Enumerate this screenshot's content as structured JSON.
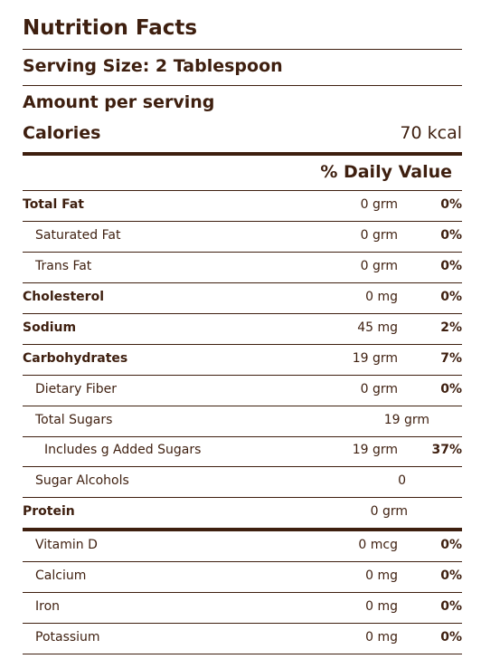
{
  "title": "Nutrition Facts",
  "serving_size": "Serving Size: 2 Tablespoon",
  "amount_per_serving": "Amount per serving",
  "calories_label": "Calories",
  "calories_value": "70 kcal",
  "daily_value_header": "% Daily Value",
  "nutrients": [
    {
      "name": "Total Fat",
      "amount": "0 grm",
      "dv": "0%"
    },
    {
      "name": "Saturated Fat",
      "amount": "0 grm",
      "dv": "0%"
    },
    {
      "name": "Trans Fat",
      "amount": "0 grm",
      "dv": "0%"
    },
    {
      "name": "Cholesterol",
      "amount": "0 mg",
      "dv": "0%"
    },
    {
      "name": "Sodium",
      "amount": "45 mg",
      "dv": "2%"
    },
    {
      "name": "Carbohydrates",
      "amount": "19 grm",
      "dv": "7%"
    },
    {
      "name": "Dietary Fiber",
      "amount": "0 grm",
      "dv": "0%"
    },
    {
      "name": "Total Sugars",
      "amount": "19 grm",
      "dv": ""
    },
    {
      "name": "Includes g Added Sugars",
      "amount": "19 grm",
      "dv": "37%"
    },
    {
      "name": "Sugar Alcohols",
      "amount": "0",
      "dv": ""
    },
    {
      "name": "Protein",
      "amount": "0 grm",
      "dv": ""
    },
    {
      "name": "Vitamin D",
      "amount": "0 mcg",
      "dv": "0%"
    },
    {
      "name": "Calcium",
      "amount": "0 mg",
      "dv": "0%"
    },
    {
      "name": "Iron",
      "amount": "0 mg",
      "dv": "0%"
    },
    {
      "name": "Potassium",
      "amount": "0 mg",
      "dv": "0%"
    }
  ],
  "colors": {
    "text": "#3e1f0f",
    "rule": "#3e1f0f",
    "background": "#ffffff"
  }
}
